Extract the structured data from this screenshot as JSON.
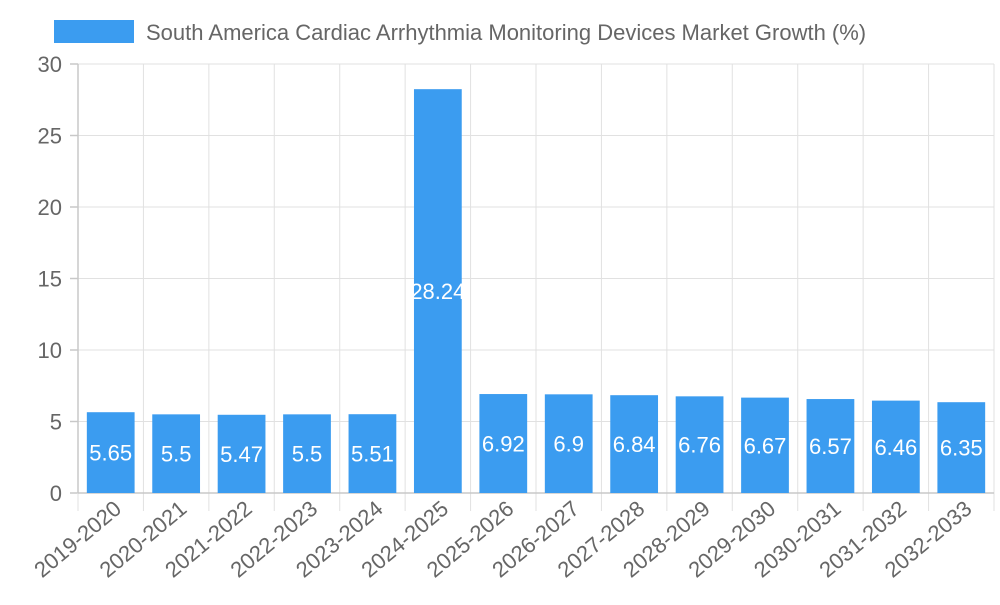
{
  "chart_data": {
    "type": "bar",
    "title": "",
    "xlabel": "",
    "ylabel": "",
    "legend": {
      "position": "top",
      "entries": [
        "South America Cardiac Arrhythmia Monitoring Devices Market Growth (%)"
      ]
    },
    "categories": [
      "2019-2020",
      "2020-2021",
      "2021-2022",
      "2022-2023",
      "2023-2024",
      "2024-2025",
      "2025-2026",
      "2026-2027",
      "2027-2028",
      "2028-2029",
      "2029-2030",
      "2030-2031",
      "2031-2032",
      "2032-2033"
    ],
    "series": [
      {
        "name": "South America Cardiac Arrhythmia Monitoring Devices Market Growth (%)",
        "color": "#3b9cf0",
        "values": [
          5.65,
          5.5,
          5.47,
          5.5,
          5.51,
          28.24,
          6.92,
          6.9,
          6.84,
          6.76,
          6.67,
          6.57,
          6.46,
          6.35
        ],
        "labels": [
          "5.65",
          "5.5",
          "5.47",
          "5.5",
          "5.51",
          "28.24",
          "6.92",
          "6.9",
          "6.84",
          "6.76",
          "6.67",
          "6.57",
          "6.46",
          "6.35"
        ]
      }
    ],
    "ylim": [
      0,
      30
    ],
    "yticks": [
      0,
      5,
      10,
      15,
      20,
      25,
      30
    ],
    "ytick_labels": [
      "0",
      "5",
      "10",
      "15",
      "20",
      "25",
      "30"
    ],
    "grid": true
  }
}
